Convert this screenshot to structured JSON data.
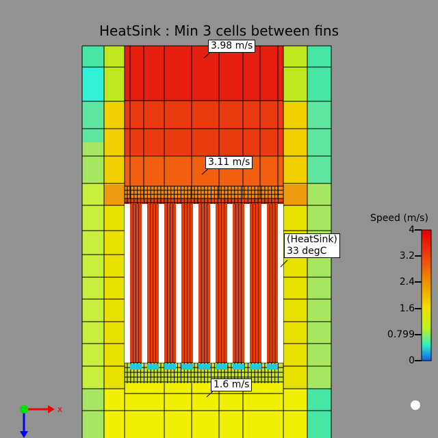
{
  "title": "HeatSink : Min 3 cells between fins",
  "callouts": [
    {
      "id": "top",
      "text": "3.98 m/s"
    },
    {
      "id": "mid",
      "text": "3.11 m/s"
    },
    {
      "id": "bottom",
      "text": "1.6 m/s"
    },
    {
      "id": "heatsink",
      "line1": "(HeatSink)",
      "line2": "33 degC"
    }
  ],
  "legend": {
    "title": "Speed (m/s)",
    "ticks": [
      "4",
      "3.2",
      "2.4",
      "1.6",
      "0.799",
      "0"
    ]
  },
  "axes": {
    "x_label": "x"
  },
  "colors": {
    "background": "#929292",
    "fin": "#ffffff",
    "grid": "#000000"
  }
}
